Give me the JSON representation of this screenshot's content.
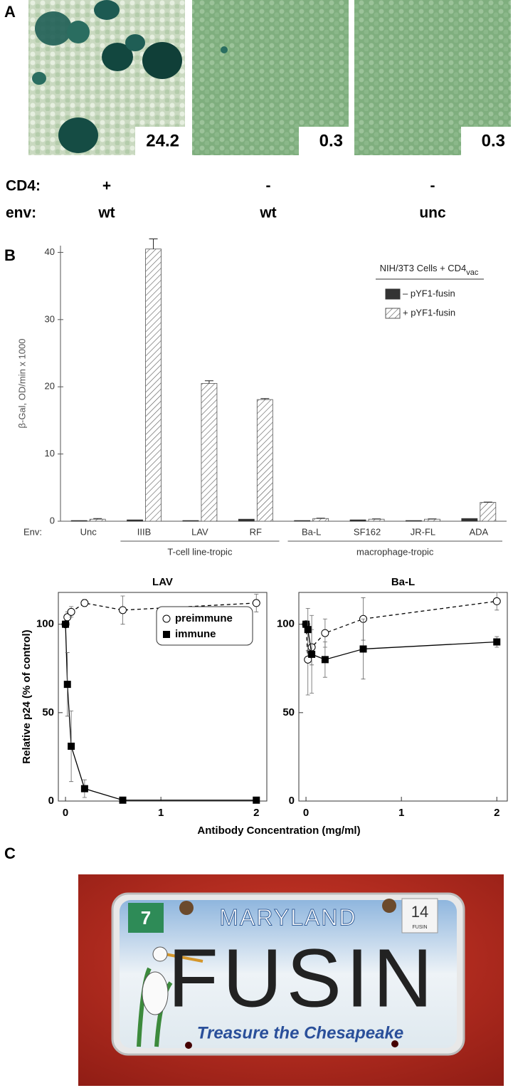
{
  "panel_a": {
    "label": "A",
    "images": [
      {
        "score": 24.2
      },
      {
        "score": 0.3
      },
      {
        "score": 0.3
      }
    ],
    "rows": [
      {
        "label": "CD4:",
        "values": [
          "+",
          "-",
          "-"
        ]
      },
      {
        "label": "env:",
        "values": [
          "wt",
          "wt",
          "unc"
        ]
      }
    ]
  },
  "panel_b": {
    "label": "B"
  },
  "chart_data": [
    {
      "type": "bar",
      "ylabel": "β-Gal, OD/min x 1000",
      "x_prefix": "Env:",
      "categories": [
        "Unc",
        "IIIB",
        "LAV",
        "RF",
        "Ba-L",
        "SF162",
        "JR-FL",
        "ADA"
      ],
      "series": [
        {
          "name": "– pYF1-fusin",
          "color": "#333333",
          "values": [
            0.1,
            0.2,
            0.1,
            0.3,
            0.1,
            0.2,
            0.1,
            0.4
          ]
        },
        {
          "name": "+ pYF1-fusin",
          "color": "#555555",
          "hatch": true,
          "values": [
            0.3,
            40.5,
            20.5,
            18.1,
            0.4,
            0.3,
            0.3,
            2.8
          ],
          "errors": [
            0.1,
            1.5,
            0.4,
            0.15,
            0.05,
            0.05,
            0.05,
            0.05
          ]
        }
      ],
      "ylim": [
        0,
        41
      ],
      "yticks": [
        0,
        10,
        20,
        30,
        40
      ],
      "legend_title": "NIH/3T3 Cells + CD4",
      "legend_title_subscript": "vac",
      "groups": [
        {
          "label": "T-cell line-tropic",
          "start": 1,
          "end": 3
        },
        {
          "label": "macrophage-tropic",
          "start": 4,
          "end": 7
        }
      ]
    },
    {
      "type": "line",
      "title": "LAV",
      "ylabel": "Relative p24 (% of control)",
      "xlabel": "Antibody Concentration (mg/ml)",
      "x": [
        0,
        0.02,
        0.06,
        0.2,
        0.6,
        2
      ],
      "xlim": [
        -0.075,
        2.11
      ],
      "xticks": [
        0,
        1,
        2
      ],
      "ylim": [
        0,
        118
      ],
      "yticks": [
        0,
        50,
        100
      ],
      "legend": true,
      "series": [
        {
          "name": "preimmune",
          "color": "#000000",
          "marker": "circle",
          "dashed": true,
          "values": [
            100,
            104,
            107,
            112,
            108,
            112
          ],
          "errors": [
            0,
            3,
            3,
            2,
            8,
            5
          ]
        },
        {
          "name": "immune",
          "color": "#000000",
          "marker": "square",
          "dashed": false,
          "values": [
            100,
            66,
            31,
            7,
            0.5,
            0.5
          ],
          "errors": [
            0,
            18,
            20,
            5,
            1,
            1
          ]
        }
      ]
    },
    {
      "type": "line",
      "title": "Ba-L",
      "x": [
        0,
        0.02,
        0.06,
        0.2,
        0.6,
        2
      ],
      "xlim": [
        -0.075,
        2.11
      ],
      "xticks": [
        0,
        1,
        2
      ],
      "ylim": [
        0,
        118
      ],
      "yticks": [
        0,
        50,
        100
      ],
      "legend": false,
      "series": [
        {
          "color": "#000000",
          "marker": "circle",
          "dashed": true,
          "values": [
            100,
            80,
            87,
            95,
            103,
            113
          ],
          "errors": [
            0,
            20,
            10,
            8,
            12,
            5
          ]
        },
        {
          "color": "#000000",
          "marker": "square",
          "dashed": false,
          "values": [
            100,
            97,
            83,
            80,
            86,
            90
          ],
          "errors": [
            0,
            12,
            22,
            10,
            17,
            3
          ]
        }
      ]
    }
  ],
  "panel_c": {
    "label": "C",
    "plate": {
      "state": "MARYLAND",
      "text": "FUSIN",
      "slogan": "Treasure the Chesapeake",
      "month_sticker": "7",
      "year_sticker": "14",
      "year_sticker_text": "FUSIN"
    }
  }
}
